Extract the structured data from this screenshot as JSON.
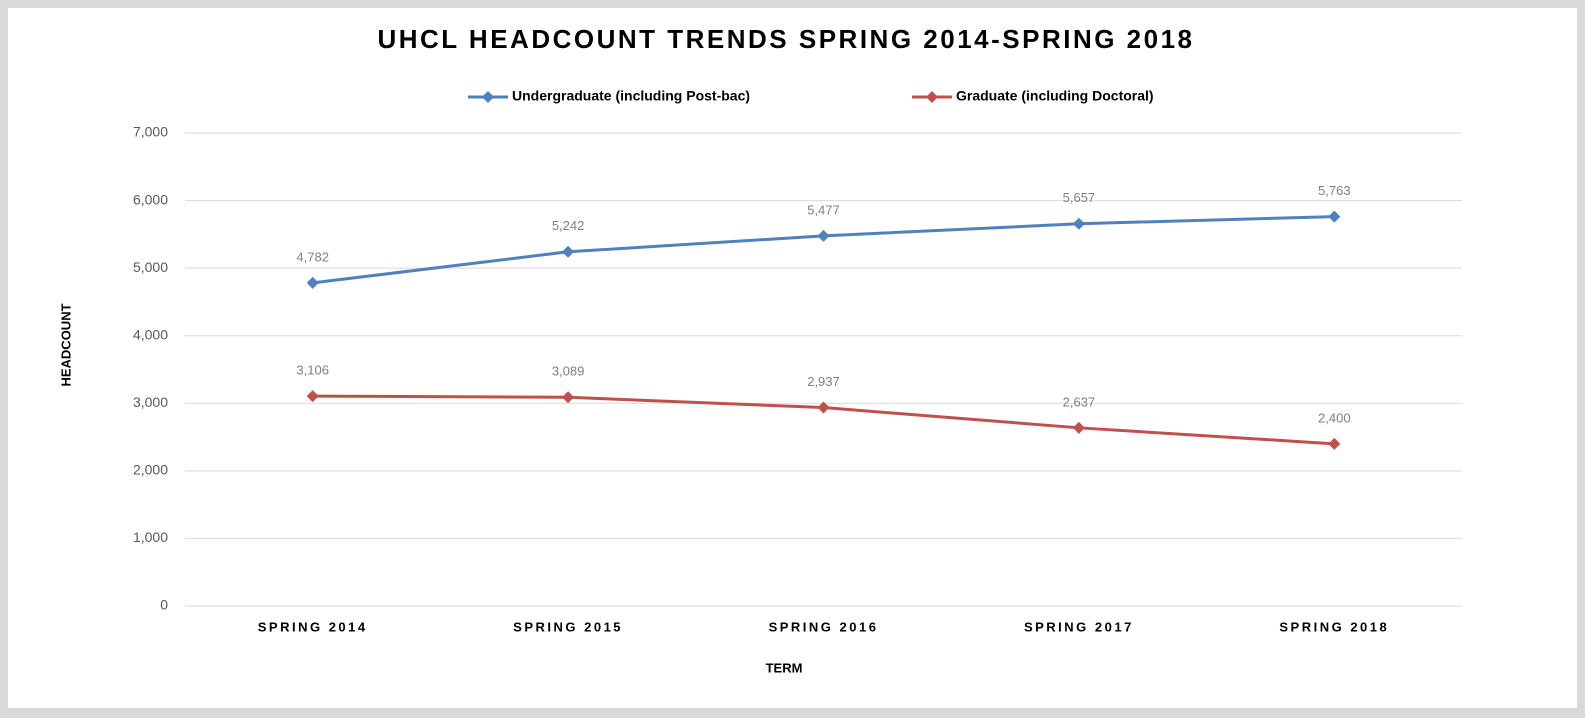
{
  "chart_data": {
    "type": "line",
    "title": "UHCL HEADCOUNT TRENDS SPRING 2014-SPRING 2018",
    "x_label": "TERM",
    "y_label": "HEADCOUNT",
    "categories": [
      "SPRING 2014",
      "SPRING 2015",
      "SPRING 2016",
      "SPRING 2017",
      "SPRING 2018"
    ],
    "series": [
      {
        "name": "Undergraduate (including Post-bac)",
        "color": "#4f81bd",
        "values": [
          4782,
          5242,
          5477,
          5657,
          5763
        ],
        "value_labels": [
          "4,782",
          "5,242",
          "5,477",
          "5,657",
          "5,763"
        ]
      },
      {
        "name": "Graduate (including Doctoral)",
        "color": "#c0504d",
        "values": [
          3106,
          3089,
          2937,
          2637,
          2400
        ],
        "value_labels": [
          "3,106",
          "3,089",
          "2,937",
          "2,637",
          "2,400"
        ]
      }
    ],
    "ylim": [
      0,
      7000
    ],
    "yticks": [
      0,
      {
        "value": 1000,
        "label": "1,000"
      },
      {
        "value": 2000,
        "label": "2,000"
      },
      {
        "value": 3000,
        "label": "3,000"
      },
      {
        "value": 4000,
        "label": "4,000"
      },
      {
        "value": 5000,
        "label": "5,000"
      },
      {
        "value": 6000,
        "label": "6,000"
      },
      {
        "value": 7000,
        "label": "7,000"
      }
    ],
    "grid": true,
    "legend": "top",
    "marker": "diamond"
  }
}
